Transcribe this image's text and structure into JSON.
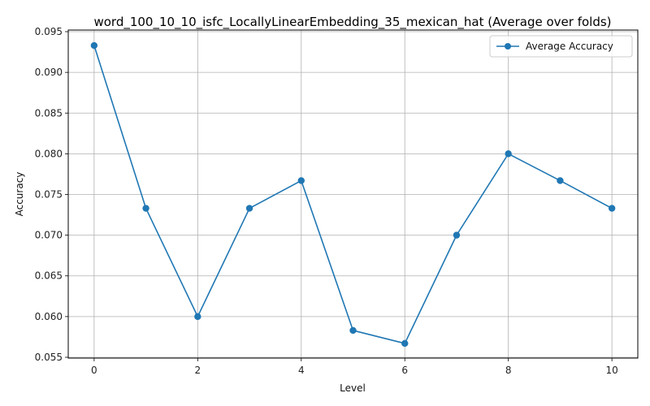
{
  "chart_data": {
    "type": "line",
    "title": "word_100_10_10_isfc_LocallyLinearEmbedding_35_mexican_hat (Average over folds)",
    "xlabel": "Level",
    "ylabel": "Accuracy",
    "x": [
      0,
      1,
      2,
      3,
      4,
      5,
      6,
      7,
      8,
      9,
      10
    ],
    "series": [
      {
        "name": "Average Accuracy",
        "values": [
          0.0933,
          0.0733,
          0.06,
          0.0733,
          0.0767,
          0.0583,
          0.0567,
          0.07,
          0.08,
          0.0767,
          0.0733
        ]
      }
    ],
    "xticks": [
      "0",
      "2",
      "4",
      "6",
      "8",
      "10"
    ],
    "yticks": [
      "0.055",
      "0.060",
      "0.065",
      "0.070",
      "0.075",
      "0.080",
      "0.085",
      "0.090",
      "0.095"
    ],
    "xlim": [
      -0.5,
      10.5
    ],
    "ylim": [
      0.0549,
      0.0952
    ],
    "grid": true,
    "legend_position": "top-right",
    "colors": {
      "series": "#1f77b4",
      "grid": "#b0b0b0",
      "axis": "#000000"
    }
  }
}
